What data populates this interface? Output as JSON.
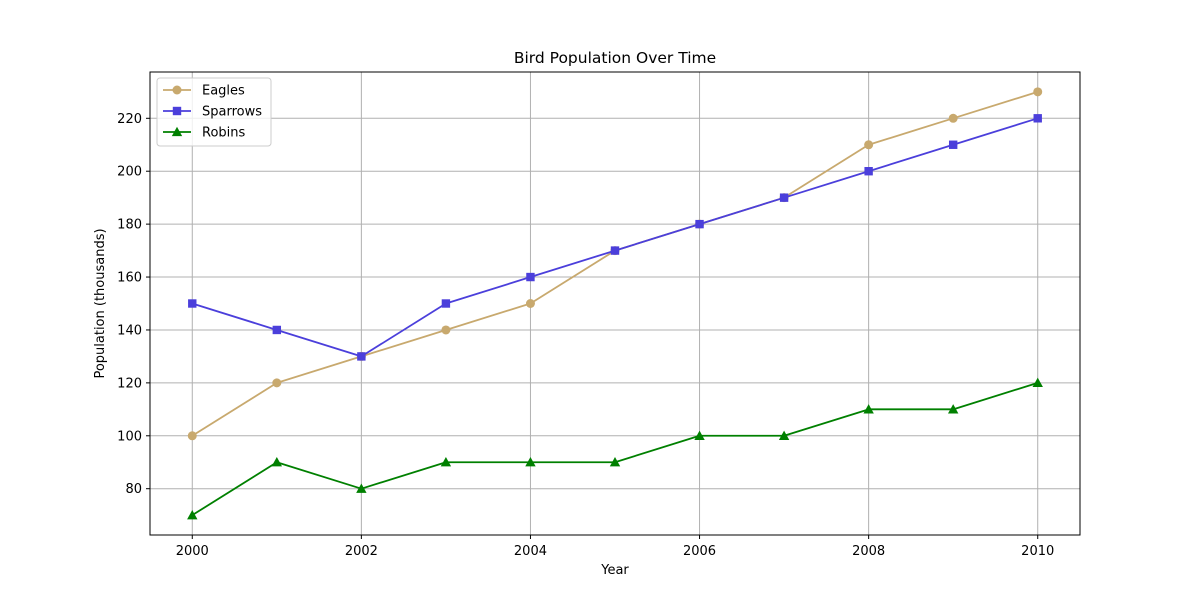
{
  "chart_data": {
    "type": "line",
    "title": "Bird Population Over Time",
    "xlabel": "Year",
    "ylabel": "Population (thousands)",
    "x": [
      2000,
      2001,
      2002,
      2003,
      2004,
      2005,
      2006,
      2007,
      2008,
      2009,
      2010
    ],
    "xlim": [
      1999.5,
      2010.5
    ],
    "ylim": [
      62.5,
      237.5
    ],
    "xticks": [
      2000,
      2002,
      2004,
      2006,
      2008,
      2010
    ],
    "yticks": [
      80,
      100,
      120,
      140,
      160,
      180,
      200,
      220
    ],
    "grid": true,
    "legend_position": "top-left",
    "series": [
      {
        "name": "Eagles",
        "color": "#c8a96e",
        "marker": "circle",
        "values": [
          100,
          120,
          130,
          140,
          150,
          170,
          180,
          190,
          210,
          220,
          230
        ]
      },
      {
        "name": "Sparrows",
        "color": "#4b3fdb",
        "marker": "square",
        "values": [
          150,
          140,
          130,
          150,
          160,
          170,
          180,
          190,
          200,
          210,
          220
        ]
      },
      {
        "name": "Robins",
        "color": "#008000",
        "marker": "triangle",
        "values": [
          70,
          90,
          80,
          90,
          90,
          90,
          100,
          100,
          110,
          110,
          120
        ]
      }
    ]
  }
}
